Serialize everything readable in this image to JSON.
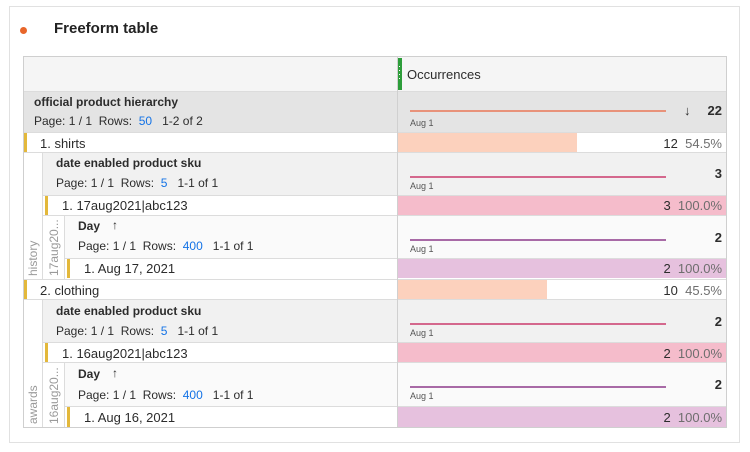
{
  "panel": {
    "title": "Freeform table",
    "accent": "#e8662a"
  },
  "header": {
    "metric": "Occurrences"
  },
  "root": {
    "dimension": "official product hierarchy",
    "page": "Page: 1 / 1",
    "rows_label": "Rows:",
    "rows": "50",
    "range": "1-2 of 2",
    "axis": "Aug 1",
    "total": "22",
    "sort_icon": "arrow-down-icon"
  },
  "items": [
    {
      "label": "1. shirts",
      "value": "12",
      "pct": "54.5%",
      "fraction": 0.545,
      "side_outer": "history",
      "side_inner": "17aug20...",
      "sub": {
        "dimension": "date enabled product sku",
        "page": "Page: 1 / 1",
        "rows_label": "Rows:",
        "rows": "5",
        "range": "1-1 of 1",
        "axis": "Aug 1",
        "total": "3",
        "row": {
          "label": "1. 17aug2021|abc123",
          "value": "3",
          "pct": "100.0%"
        },
        "day": {
          "dimension": "Day",
          "sort_icon": "arrow-up-icon",
          "page": "Page: 1 / 1",
          "rows_label": "Rows:",
          "rows": "400",
          "range": "1-1 of 1",
          "axis": "Aug 1",
          "total": "2",
          "row": {
            "label": "1. Aug 17, 2021",
            "value": "2",
            "pct": "100.0%"
          }
        }
      }
    },
    {
      "label": "2. clothing",
      "value": "10",
      "pct": "45.5%",
      "fraction": 0.455,
      "side_outer": "awards",
      "side_inner": "16aug20...",
      "sub": {
        "dimension": "date enabled product sku",
        "page": "Page: 1 / 1",
        "rows_label": "Rows:",
        "rows": "5",
        "range": "1-1 of 1",
        "axis": "Aug 1",
        "total": "2",
        "row": {
          "label": "1. 16aug2021|abc123",
          "value": "2",
          "pct": "100.0%"
        },
        "day": {
          "dimension": "Day",
          "sort_icon": "arrow-up-icon",
          "page": "Page: 1 / 1",
          "rows_label": "Rows:",
          "rows": "400",
          "range": "1-1 of 1",
          "axis": "Aug 1",
          "total": "2",
          "row": {
            "label": "1. Aug 16, 2021",
            "value": "2",
            "pct": "100.0%"
          }
        }
      }
    }
  ],
  "colors": {
    "level1_bar": "#fcd1bd",
    "level2_bar": "#f5bccb",
    "level3_bar": "#e6c1de",
    "spark1": "#e8927a",
    "spark2": "#d4688d",
    "spark3": "#a86aa6",
    "row_marker": "#e3b83b",
    "header_accent": "#2d9d3a"
  }
}
